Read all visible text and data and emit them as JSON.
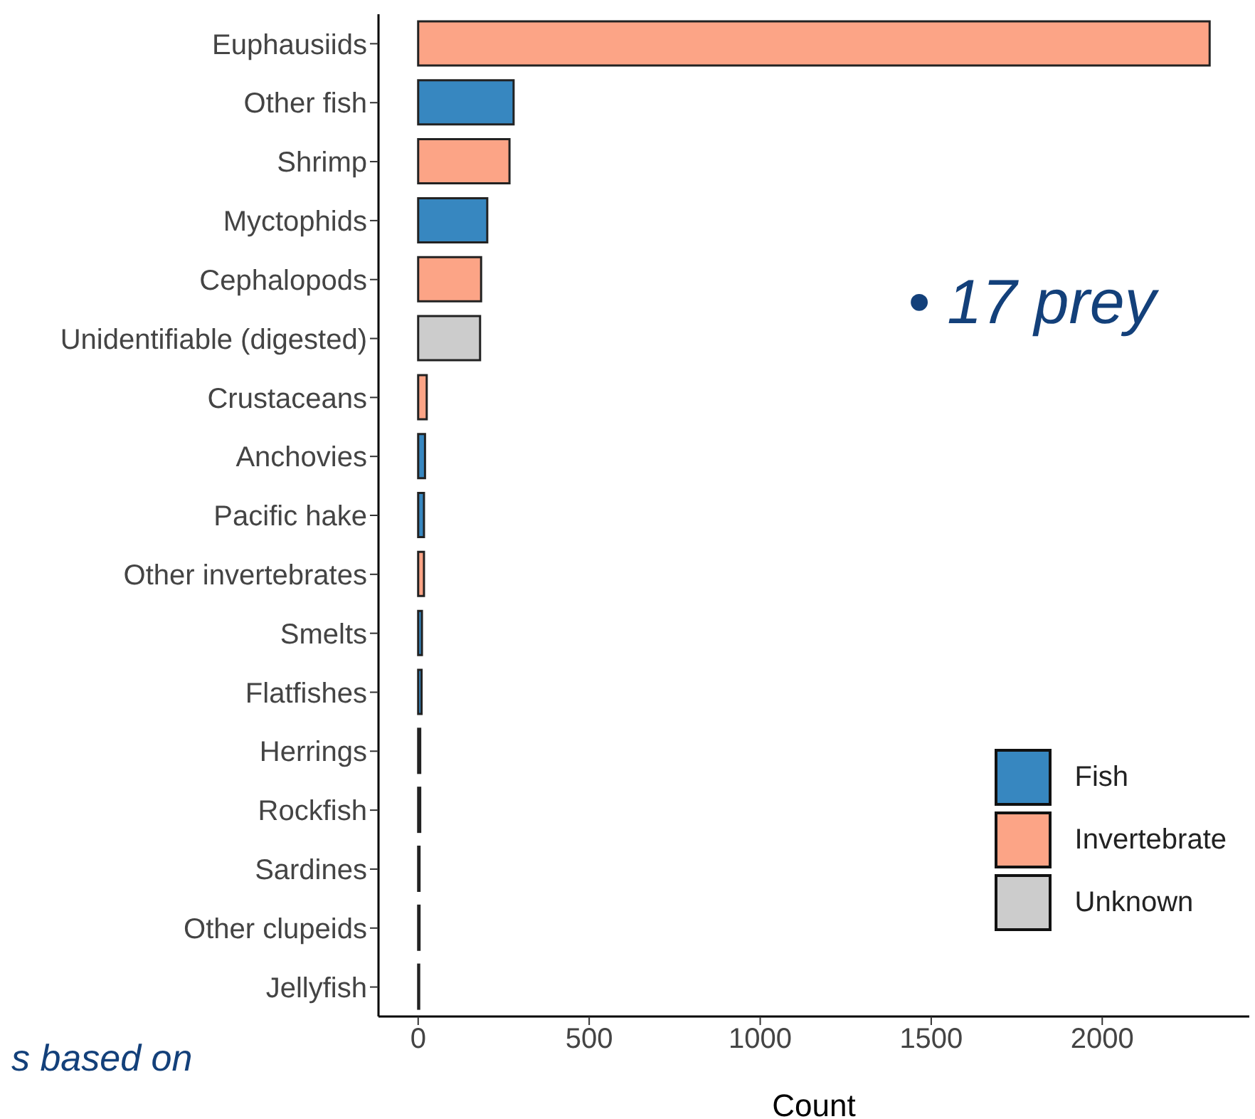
{
  "chart_data": {
    "type": "bar",
    "orientation": "horizontal",
    "stacked": true,
    "xlabel": "Count",
    "categories": [
      "Euphausiids",
      "Other fish",
      "Shrimp",
      "Myctophids",
      "Cephalopods",
      "Unidentifiable (digested)",
      "Crustaceans",
      "Anchovies",
      "Pacific hake",
      "Other invertebrates",
      "Smelts",
      "Flatfishes",
      "Herrings",
      "Rockfish",
      "Sardines",
      "Other clupeids",
      "Jellyfish"
    ],
    "series": [
      {
        "name": "Fish",
        "color": "#3787c0",
        "values": [
          null,
          279,
          null,
          202,
          null,
          null,
          null,
          20,
          17,
          null,
          11,
          10,
          6,
          6,
          4,
          4,
          null
        ]
      },
      {
        "name": "Invertebrate",
        "color": "#fca486",
        "values": [
          2314,
          null,
          267,
          null,
          184,
          null,
          25,
          null,
          null,
          17,
          null,
          null,
          null,
          null,
          null,
          null,
          3
        ]
      },
      {
        "name": "Unknown",
        "color": "#cccccc",
        "values": [
          null,
          null,
          null,
          null,
          null,
          181,
          null,
          null,
          null,
          null,
          null,
          null,
          null,
          null,
          null,
          null,
          null
        ]
      }
    ],
    "xlim": [
      -116,
      2430
    ],
    "xticks": [
      0,
      500,
      1000,
      1500,
      2000
    ],
    "legend": "bottom right",
    "annotations": [
      "• 17 prey",
      "s based on"
    ]
  }
}
